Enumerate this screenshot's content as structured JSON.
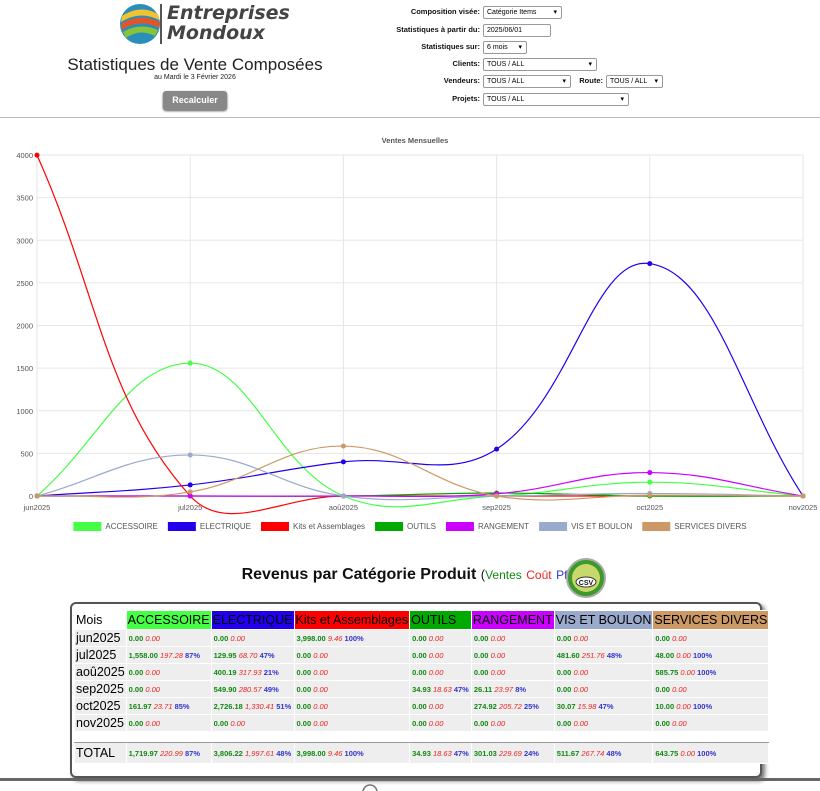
{
  "header": {
    "logo_line1": "Entreprises",
    "logo_line2": "Mondoux",
    "title": "Statistiques de Vente Composées",
    "date": "au Mardi le 3 Février 2026",
    "button": "Recalculer"
  },
  "form": {
    "rows": [
      [
        {
          "label": "Composition visée:",
          "value": "Catégorie Items"
        }
      ],
      [
        {
          "label": "Statistiques à partir du:",
          "value": "2025/06/01"
        }
      ],
      [
        {
          "label": "Statistiques sur:",
          "value": "6 mois"
        }
      ],
      [
        {
          "label": "Clients:",
          "value": "TOUS / ALL"
        }
      ],
      [
        {
          "label": "Vendeurs:",
          "value": "TOUS / ALL"
        },
        {
          "label": "Route:",
          "value": "TOUS / ALL"
        }
      ],
      [
        {
          "label": "Projets:",
          "value": "TOUS / ALL"
        }
      ]
    ]
  },
  "chart_data": {
    "type": "line",
    "title": "Ventes Mensuelles",
    "categories": [
      "jun2025",
      "jul2025",
      "aoû2025",
      "sep2025",
      "oct2025",
      "nov2025"
    ],
    "series": [
      {
        "name": "ACCESSOIRE",
        "color": "#44ff44",
        "values": [
          0,
          1558,
          0,
          0,
          161.97,
          0
        ]
      },
      {
        "name": "ELECTRIQUE",
        "color": "#2200ee",
        "values": [
          0,
          129.95,
          400.19,
          549.9,
          2726.18,
          0
        ]
      },
      {
        "name": "Kits et Assemblages",
        "color": "#ff0000",
        "values": [
          3998,
          0,
          0,
          0,
          0,
          0
        ]
      },
      {
        "name": "OUTILS",
        "color": "#00aa00",
        "values": [
          0,
          0,
          0,
          34.93,
          0,
          0
        ]
      },
      {
        "name": "RANGEMENT",
        "color": "#cc00ff",
        "values": [
          0,
          0,
          0,
          26.11,
          274.92,
          0
        ]
      },
      {
        "name": "VIS ET BOULON",
        "color": "#99aacc",
        "values": [
          0,
          481.6,
          0,
          0,
          30.07,
          0
        ]
      },
      {
        "name": "SERVICES DIVERS",
        "color": "#cc9966",
        "values": [
          0,
          48,
          585.75,
          0,
          10,
          0
        ]
      }
    ],
    "ylim": [
      0,
      4000
    ],
    "yticks": [
      0,
      500,
      1000,
      1500,
      2000,
      2500,
      3000,
      3500,
      4000
    ],
    "grid": true,
    "smooth": true
  },
  "revenue": {
    "title": "Revenus par Catégorie Produit",
    "open": "(",
    "sales_label": "Ventes",
    "cost_label": "Coût",
    "profit_label": "Pft.",
    "close": ")",
    "csv": "CSV"
  },
  "table": {
    "corner": "Mois",
    "total_label": "TOTAL",
    "rows": [
      [
        {
          "sales": "0.00",
          "cost": "0.00"
        },
        {
          "sales": "0.00",
          "cost": "0.00"
        },
        {
          "sales": "3,998.00",
          "cost": "9.46",
          "pct": "100%"
        },
        {
          "sales": "0.00",
          "cost": "0.00"
        },
        {
          "sales": "0.00",
          "cost": "0.00"
        },
        {
          "sales": "0.00",
          "cost": "0.00"
        },
        {
          "sales": "0.00",
          "cost": "0.00"
        }
      ],
      [
        {
          "sales": "1,558.00",
          "cost": "197.28",
          "pct": "87%"
        },
        {
          "sales": "129.95",
          "cost": "68.70",
          "pct": "47%"
        },
        {
          "sales": "0.00",
          "cost": "0.00"
        },
        {
          "sales": "0.00",
          "cost": "0.00"
        },
        {
          "sales": "0.00",
          "cost": "0.00"
        },
        {
          "sales": "481.60",
          "cost": "251.76",
          "pct": "48%"
        },
        {
          "sales": "48.00",
          "cost": "0.00",
          "pct": "100%"
        }
      ],
      [
        {
          "sales": "0.00",
          "cost": "0.00"
        },
        {
          "sales": "400.19",
          "cost": "317.93",
          "pct": "21%"
        },
        {
          "sales": "0.00",
          "cost": "0.00"
        },
        {
          "sales": "0.00",
          "cost": "0.00"
        },
        {
          "sales": "0.00",
          "cost": "0.00"
        },
        {
          "sales": "0.00",
          "cost": "0.00"
        },
        {
          "sales": "585.75",
          "cost": "0.00",
          "pct": "100%"
        }
      ],
      [
        {
          "sales": "0.00",
          "cost": "0.00"
        },
        {
          "sales": "549.90",
          "cost": "280.57",
          "pct": "49%"
        },
        {
          "sales": "0.00",
          "cost": "0.00"
        },
        {
          "sales": "34.93",
          "cost": "18.63",
          "pct": "47%"
        },
        {
          "sales": "26.11",
          "cost": "23.97",
          "pct": "8%"
        },
        {
          "sales": "0.00",
          "cost": "0.00"
        },
        {
          "sales": "0.00",
          "cost": "0.00"
        }
      ],
      [
        {
          "sales": "161.97",
          "cost": "23.71",
          "pct": "85%"
        },
        {
          "sales": "2,726.18",
          "cost": "1,330.41",
          "pct": "51%"
        },
        {
          "sales": "0.00",
          "cost": "0.00"
        },
        {
          "sales": "0.00",
          "cost": "0.00"
        },
        {
          "sales": "274.92",
          "cost": "205.72",
          "pct": "25%"
        },
        {
          "sales": "30.07",
          "cost": "15.98",
          "pct": "47%"
        },
        {
          "sales": "10.00",
          "cost": "0.00",
          "pct": "100%"
        }
      ],
      [
        {
          "sales": "0.00",
          "cost": "0.00"
        },
        {
          "sales": "0.00",
          "cost": "0.00"
        },
        {
          "sales": "0.00",
          "cost": "0.00"
        },
        {
          "sales": "0.00",
          "cost": "0.00"
        },
        {
          "sales": "0.00",
          "cost": "0.00"
        },
        {
          "sales": "0.00",
          "cost": "0.00"
        },
        {
          "sales": "0.00",
          "cost": "0.00"
        }
      ]
    ],
    "total": [
      {
        "sales": "1,719.97",
        "cost": "220.99",
        "pct": "87%"
      },
      {
        "sales": "3,806.22",
        "cost": "1,997.61",
        "pct": "48%"
      },
      {
        "sales": "3,998.00",
        "cost": "9.46",
        "pct": "100%"
      },
      {
        "sales": "34.93",
        "cost": "18.63",
        "pct": "47%"
      },
      {
        "sales": "301.03",
        "cost": "229.69",
        "pct": "24%"
      },
      {
        "sales": "511.67",
        "cost": "267.74",
        "pct": "48%"
      },
      {
        "sales": "643.75",
        "cost": "0.00",
        "pct": "100%"
      }
    ]
  }
}
